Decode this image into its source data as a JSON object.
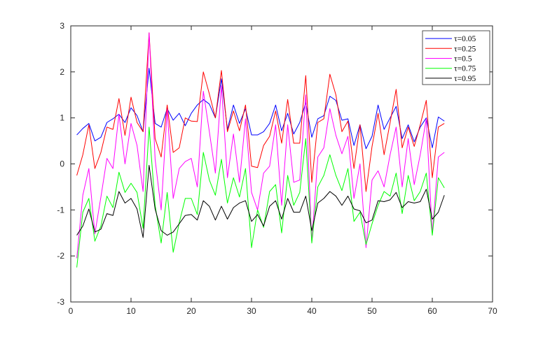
{
  "chart_data": {
    "type": "line",
    "title": "",
    "xlabel": "",
    "ylabel": "",
    "xlim": [
      0,
      70
    ],
    "ylim": [
      -3,
      3
    ],
    "xticks": [
      0,
      10,
      20,
      30,
      40,
      50,
      60,
      70
    ],
    "yticks": [
      -3,
      -2,
      -1,
      0,
      1,
      2,
      3
    ],
    "grid": false,
    "legend_position": "top-right",
    "x": [
      1,
      2,
      3,
      4,
      5,
      6,
      7,
      8,
      9,
      10,
      11,
      12,
      13,
      14,
      15,
      16,
      17,
      18,
      19,
      20,
      21,
      22,
      23,
      24,
      25,
      26,
      27,
      28,
      29,
      30,
      31,
      32,
      33,
      34,
      35,
      36,
      37,
      38,
      39,
      40,
      41,
      42,
      43,
      44,
      45,
      46,
      47,
      48,
      49,
      50,
      51,
      52,
      53,
      54,
      55,
      56,
      57,
      58,
      59,
      60,
      61,
      62
    ],
    "series": [
      {
        "name": "τ=0.05",
        "color": "#0000ff",
        "values": [
          0.63,
          0.77,
          0.88,
          0.5,
          0.58,
          0.9,
          0.98,
          1.08,
          0.9,
          1.22,
          1.05,
          0.7,
          2.08,
          0.88,
          0.8,
          1.2,
          0.95,
          1.1,
          0.83,
          1.1,
          1.28,
          1.4,
          1.3,
          1.0,
          1.85,
          0.75,
          1.28,
          0.88,
          1.2,
          0.63,
          0.63,
          0.7,
          0.88,
          1.28,
          0.72,
          1.1,
          0.65,
          0.9,
          1.33,
          0.58,
          0.98,
          1.05,
          1.47,
          1.38,
          0.95,
          0.98,
          0.4,
          0.85,
          0.33,
          0.6,
          1.28,
          0.75,
          1.0,
          1.25,
          0.55,
          0.85,
          0.48,
          0.8,
          1.0,
          0.35,
          1.02,
          0.93
        ]
      },
      {
        "name": "τ=0.25",
        "color": "#ff0000",
        "values": [
          -0.25,
          0.2,
          0.85,
          -0.1,
          0.25,
          0.8,
          0.75,
          1.42,
          0.62,
          1.45,
          0.9,
          0.7,
          2.85,
          0.55,
          0.15,
          1.28,
          0.25,
          0.35,
          1.0,
          0.93,
          0.92,
          2.0,
          1.52,
          1.0,
          2.03,
          0.7,
          1.15,
          0.72,
          1.28,
          -0.05,
          -0.08,
          0.4,
          0.6,
          1.15,
          0.45,
          1.4,
          0.45,
          0.45,
          1.92,
          -0.4,
          0.9,
          0.98,
          1.95,
          1.5,
          0.7,
          0.93,
          -0.1,
          0.85,
          -0.6,
          0.38,
          1.1,
          0.2,
          0.9,
          1.62,
          0.35,
          0.8,
          0.38,
          0.85,
          1.38,
          -0.3,
          0.8,
          0.88
        ]
      },
      {
        "name": "τ=0.5",
        "color": "#ff00ff",
        "values": [
          -2.05,
          -0.68,
          -0.1,
          -1.52,
          -0.72,
          0.12,
          -0.1,
          1.08,
          0.0,
          0.88,
          0.4,
          -0.6,
          2.85,
          0.1,
          -1.0,
          1.18,
          -0.75,
          -0.1,
          0.05,
          0.12,
          -0.5,
          1.58,
          0.7,
          -0.2,
          1.7,
          -0.3,
          0.65,
          -0.4,
          0.98,
          -0.62,
          -1.0,
          -0.2,
          -0.05,
          0.85,
          -0.9,
          0.85,
          -0.4,
          -0.35,
          1.5,
          -1.7,
          0.15,
          0.35,
          1.2,
          0.62,
          0.22,
          0.6,
          -0.75,
          0.0,
          -1.82,
          -0.35,
          -0.15,
          -0.5,
          0.2,
          0.8,
          -0.5,
          0.55,
          -0.45,
          0.2,
          0.98,
          -1.52,
          0.15,
          0.25
        ]
      },
      {
        "name": "τ=0.75",
        "color": "#00ff00",
        "values": [
          -2.25,
          -1.05,
          -0.75,
          -1.68,
          -1.35,
          -0.7,
          -0.95,
          -0.18,
          -0.62,
          -0.42,
          -0.62,
          -1.4,
          0.8,
          -0.9,
          -1.72,
          -0.62,
          -1.92,
          -1.28,
          -0.75,
          -0.75,
          -1.1,
          0.25,
          -0.35,
          -0.68,
          0.1,
          -0.85,
          -0.3,
          -0.72,
          -0.1,
          -1.82,
          -1.0,
          -1.38,
          -0.6,
          -0.45,
          -1.5,
          -0.25,
          -0.9,
          -0.62,
          0.55,
          -1.72,
          -0.5,
          -0.25,
          0.2,
          -0.25,
          -0.58,
          -0.1,
          -1.25,
          -1.05,
          -1.75,
          -1.3,
          -0.9,
          -0.6,
          -0.7,
          -0.2,
          -1.08,
          -0.25,
          -0.8,
          -0.6,
          -0.2,
          -1.55,
          -0.3,
          -0.52
        ]
      },
      {
        "name": "τ=0.95",
        "color": "#000000",
        "values": [
          -1.55,
          -1.35,
          -0.98,
          -1.48,
          -1.42,
          -1.08,
          -1.12,
          -0.6,
          -0.85,
          -0.75,
          -0.98,
          -1.6,
          -0.03,
          -0.98,
          -1.45,
          -1.55,
          -1.48,
          -1.3,
          -1.12,
          -1.1,
          -1.22,
          -0.8,
          -0.92,
          -1.22,
          -0.92,
          -1.2,
          -0.95,
          -0.85,
          -0.8,
          -1.25,
          -1.1,
          -1.35,
          -0.92,
          -0.8,
          -1.2,
          -0.75,
          -1.05,
          -1.05,
          -0.7,
          -1.45,
          -0.85,
          -0.75,
          -0.6,
          -0.7,
          -0.9,
          -0.7,
          -0.98,
          -1.02,
          -1.28,
          -1.22,
          -0.8,
          -0.82,
          -0.78,
          -0.62,
          -0.95,
          -0.82,
          -0.85,
          -0.82,
          -0.55,
          -1.2,
          -1.05,
          -0.68
        ]
      }
    ]
  }
}
